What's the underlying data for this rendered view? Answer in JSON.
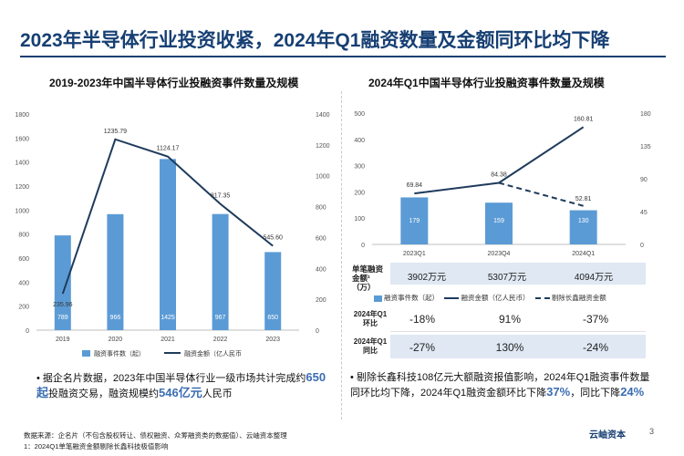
{
  "title": "2023年半导体行业投资收紧，2024年Q1融资数量及金额同环比均下降",
  "left_chart_title": "2019-2023年中国半导体行业投融资事件数量及规模",
  "right_chart_title": "2024年Q1中国半导体行业投融资事件数量及规模",
  "colors": {
    "bar": "#5b9bd5",
    "line": "#1f3b5c",
    "title": "#163f73",
    "highlight": "#3b6db3"
  },
  "chart_data": [
    {
      "type": "bar",
      "categories": [
        "2019",
        "2020",
        "2021",
        "2022",
        "2023"
      ],
      "series": [
        {
          "name": "融资事件数（起）",
          "type": "bar",
          "axis": "left",
          "values": [
            789,
            966,
            1425,
            967,
            650
          ]
        },
        {
          "name": "融资金额（亿人民币）",
          "type": "line",
          "axis": "right",
          "values": [
            235.96,
            1235.79,
            1124.17,
            817.35,
            545.6
          ]
        }
      ],
      "ylim_left": [
        0,
        1800
      ],
      "ylim_right": [
        0,
        1400
      ],
      "yticks_left": [
        "0",
        "200",
        "400",
        "600",
        "800",
        "1000",
        "1200",
        "1400",
        "1600",
        "1800"
      ],
      "yticks_right": [
        "0",
        "200",
        "400",
        "600",
        "800",
        "1000",
        "1200",
        "1400"
      ],
      "legend": [
        "融资事件数（起）",
        "融资金额（亿人民币"
      ]
    },
    {
      "type": "bar",
      "categories": [
        "2023Q1",
        "2023Q4",
        "2024Q1"
      ],
      "series": [
        {
          "name": "融资事件数（起）",
          "type": "bar",
          "axis": "left",
          "values": [
            179,
            159,
            130
          ]
        },
        {
          "name": "融资金额（亿人民币）",
          "type": "line",
          "axis": "right",
          "values": [
            69.84,
            84.38,
            160.81
          ]
        },
        {
          "name": "剔除长鑫融资金额",
          "type": "line-dashed",
          "axis": "right",
          "values": [
            null,
            84.38,
            52.81
          ]
        }
      ],
      "ylim_left": [
        0,
        500
      ],
      "ylim_right": [
        0,
        180
      ],
      "yticks_left": [
        "0",
        "100",
        "200",
        "300",
        "400",
        "500"
      ],
      "yticks_right": [
        "0",
        "45",
        "90",
        "135",
        "180"
      ],
      "legend": [
        "融资事件数（起）",
        "融资金额（亿人民币）",
        "剔除长鑫融资金额"
      ]
    }
  ],
  "amount": {
    "label": "单笔融资金额¹（万）",
    "values": [
      "3902万元",
      "5307万元",
      "4094万元"
    ]
  },
  "growth_table": [
    {
      "label": "2024年Q1环比",
      "values": [
        "-18%",
        "91%",
        "-37%"
      ]
    },
    {
      "label": "2024年Q1同比",
      "values": [
        "-27%",
        "130%",
        "-24%"
      ]
    }
  ],
  "bullet_left": {
    "p1": "据企名片数据，2023年中国半导体行业一级市场共计完成约",
    "h1": "650起",
    "p2": "投融资交易，融资规模约",
    "h2": "546亿元",
    "p3": "人民币"
  },
  "bullet_right": {
    "p1": "剔除长鑫科技108亿元大额融资报值影响，2024年Q1融资事件数量同环比均下降，2024年Q1融资金额环比下降",
    "h1": "37%",
    "p2": "，同比下降",
    "h2": "24%"
  },
  "source_line1": "数据来源：企名片（不包含股权转让、债权融资、众筹融资类的数据值）、云岫资本整理",
  "source_line2": "1：2024Q1单笔融资金额剔除长鑫科技极值影响",
  "brand": "云岫资本",
  "page_number": "3"
}
